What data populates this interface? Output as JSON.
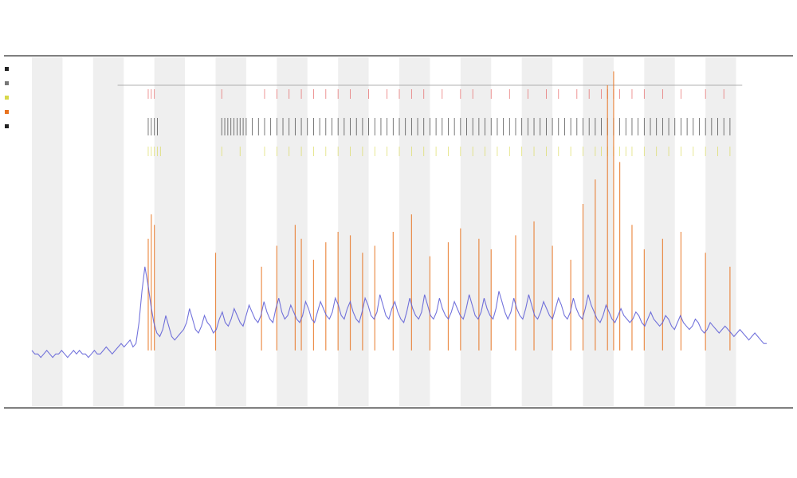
{
  "chart_data": {
    "type": "line",
    "title": "",
    "subtitle_lines": [],
    "xlabel": "",
    "ylabel": "",
    "grid": false,
    "legend_placement": "top-left",
    "x_range": [
      0,
      240
    ],
    "y_range": [
      0,
      100
    ],
    "band_count": 12,
    "colors": {
      "baseline": "#5b5bd6",
      "peaks": "#e8731f",
      "band_fill": "#efefef",
      "marker_red": "#e35050",
      "marker_black": "#222222",
      "marker_yellow": "#d8d84a",
      "axis": "#555555"
    },
    "series": [
      {
        "type": "line",
        "values": [
          16,
          15,
          15,
          14,
          15,
          16,
          15,
          14,
          15,
          15,
          16,
          15,
          14,
          15,
          16,
          15,
          16,
          15,
          15,
          14,
          15,
          16,
          15,
          15,
          16,
          17,
          16,
          15,
          16,
          17,
          18,
          17,
          18,
          19,
          17,
          18,
          24,
          33,
          40,
          35,
          29,
          24,
          21,
          20,
          22,
          26,
          23,
          20,
          19,
          20,
          21,
          22,
          24,
          28,
          25,
          22,
          21,
          23,
          26,
          24,
          23,
          21,
          22,
          25,
          27,
          24,
          23,
          25,
          28,
          26,
          24,
          23,
          26,
          29,
          27,
          25,
          24,
          26,
          30,
          27,
          25,
          24,
          28,
          31,
          27,
          25,
          26,
          29,
          27,
          25,
          24,
          26,
          30,
          28,
          25,
          24,
          27,
          30,
          28,
          26,
          25,
          27,
          31,
          29,
          26,
          25,
          28,
          30,
          27,
          25,
          24,
          27,
          31,
          29,
          26,
          25,
          27,
          32,
          29,
          26,
          25,
          28,
          30,
          27,
          25,
          24,
          27,
          31,
          28,
          26,
          25,
          27,
          32,
          29,
          26,
          25,
          27,
          31,
          28,
          26,
          25,
          27,
          30,
          28,
          26,
          25,
          28,
          32,
          29,
          26,
          25,
          27,
          31,
          28,
          26,
          25,
          28,
          33,
          30,
          27,
          25,
          27,
          31,
          28,
          26,
          25,
          28,
          32,
          29,
          26,
          25,
          27,
          30,
          28,
          26,
          25,
          28,
          31,
          29,
          26,
          25,
          27,
          31,
          28,
          26,
          25,
          28,
          32,
          29,
          27,
          25,
          24,
          26,
          29,
          27,
          25,
          24,
          26,
          28,
          26,
          25,
          24,
          25,
          27,
          26,
          24,
          23,
          25,
          27,
          25,
          24,
          23,
          24,
          26,
          25,
          23,
          22,
          24,
          26,
          24,
          23,
          22,
          23,
          25,
          24,
          22,
          21,
          22,
          24,
          23,
          22,
          21,
          22,
          23,
          22,
          21,
          20,
          21,
          22,
          21,
          20,
          19,
          20,
          21,
          20,
          19,
          18,
          18
        ]
      },
      {
        "type": "spikes",
        "x": [
          38,
          39,
          40,
          60,
          75,
          80,
          86,
          88,
          92,
          96,
          100,
          104,
          108,
          112,
          118,
          124,
          130,
          136,
          140,
          146,
          150,
          158,
          164,
          170,
          176,
          180,
          184,
          188,
          190,
          192,
          196,
          200,
          206,
          212,
          220,
          228
        ],
        "values": [
          48,
          55,
          52,
          44,
          40,
          46,
          52,
          48,
          42,
          47,
          50,
          49,
          44,
          46,
          50,
          55,
          43,
          47,
          51,
          48,
          45,
          49,
          53,
          46,
          42,
          58,
          65,
          92,
          96,
          70,
          52,
          45,
          48,
          50,
          44,
          40
        ]
      }
    ],
    "marker_rows": [
      {
        "name": "",
        "color": "#e35050",
        "x": [
          38,
          39,
          40,
          62,
          76,
          80,
          84,
          88,
          92,
          96,
          100,
          104,
          110,
          116,
          120,
          124,
          128,
          134,
          140,
          144,
          150,
          156,
          162,
          168,
          172,
          178,
          182,
          186,
          188,
          190,
          192,
          196,
          200,
          206,
          212,
          220,
          226
        ]
      },
      {
        "name": "",
        "color": "#222222",
        "x": [
          38,
          39,
          40,
          41,
          62,
          63,
          64,
          65,
          66,
          67,
          68,
          69,
          70,
          72,
          74,
          76,
          78,
          80,
          82,
          84,
          86,
          88,
          90,
          92,
          94,
          96,
          98,
          100,
          102,
          104,
          106,
          108,
          110,
          112,
          114,
          116,
          118,
          120,
          122,
          124,
          126,
          128,
          130,
          132,
          134,
          136,
          138,
          140,
          142,
          144,
          146,
          148,
          150,
          152,
          154,
          156,
          158,
          160,
          162,
          164,
          166,
          168,
          170,
          172,
          174,
          176,
          178,
          180,
          182,
          184,
          186,
          188,
          190,
          192,
          194,
          196,
          198,
          200,
          202,
          204,
          206,
          208,
          210,
          212,
          214,
          216,
          218,
          220,
          222,
          224,
          226,
          228
        ]
      },
      {
        "name": "",
        "color": "#d8d84a",
        "x": [
          38,
          39,
          40,
          41,
          42,
          62,
          68,
          76,
          80,
          84,
          88,
          92,
          96,
          100,
          104,
          108,
          112,
          116,
          120,
          124,
          128,
          132,
          136,
          140,
          144,
          148,
          152,
          156,
          160,
          164,
          168,
          172,
          176,
          180,
          184,
          186,
          188,
          190,
          192,
          194,
          196,
          200,
          204,
          208,
          212,
          216,
          220,
          224,
          228
        ]
      }
    ],
    "x_tick_labels": [],
    "legend": [
      {
        "label": "",
        "color": "#222222"
      },
      {
        "label": "",
        "color": "#777777"
      },
      {
        "label": "",
        "color": "#d8d84a"
      },
      {
        "label": "",
        "color": "#e8731f"
      },
      {
        "label": "",
        "color": "#222222"
      }
    ]
  }
}
